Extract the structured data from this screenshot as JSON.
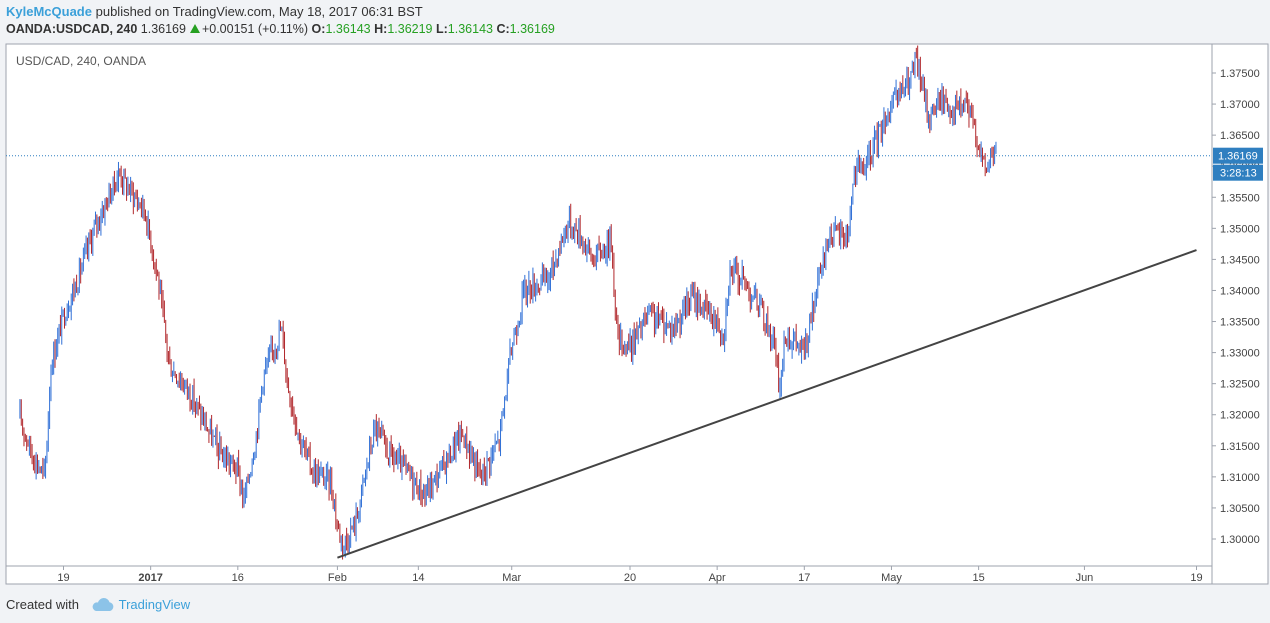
{
  "header": {
    "author": "KyleMcQuade",
    "published_text": "published on TradingView.com, May 18, 2017 06:31 BST",
    "symbol": "OANDA:USDCAD, 240",
    "last": "1.36169",
    "change": "+0.00151 (+0.11%)",
    "o_label": "O:",
    "o_value": "1.36143",
    "h_label": "H:",
    "h_value": "1.36219",
    "l_label": "L:",
    "l_value": "1.36143",
    "c_label": "C:",
    "c_value": "1.36169"
  },
  "footer": {
    "created_with": "Created with",
    "brand": "TradingView"
  },
  "colors": {
    "up_candle": "#2f6fd6",
    "down_candle": "#b0262a",
    "trendline": "#444444",
    "price_line": "#2f7fc0",
    "price_label_bg": "#2f7fc0",
    "accent": "#3ba0d9"
  },
  "chart_data": {
    "type": "candlestick",
    "title": "USD/CAD, 240, OANDA",
    "ylim": [
      1.2965,
      1.3795
    ],
    "y_ticks": [
      "1.37500",
      "1.37000",
      "1.36500",
      "1.36000",
      "1.35500",
      "1.35000",
      "1.34500",
      "1.34000",
      "1.33500",
      "1.33000",
      "1.32500",
      "1.32000",
      "1.31500",
      "1.31000",
      "1.30500",
      "1.30000"
    ],
    "x_ticks": [
      "19",
      "2017",
      "16",
      "Feb",
      "14",
      "Mar",
      "20",
      "Apr",
      "17",
      "May",
      "15",
      "Jun",
      "19"
    ],
    "x_tick_dates": [
      "2016-12-19",
      "2017-01-02",
      "2017-01-16",
      "2017-02-01",
      "2017-02-14",
      "2017-03-01",
      "2017-03-20",
      "2017-04-03",
      "2017-04-17",
      "2017-05-01",
      "2017-05-15",
      "2017-06-01",
      "2017-06-19"
    ],
    "current_price": "1.36169",
    "countdown": "3:28:13",
    "price_path": [
      {
        "date": "2016-12-12",
        "price": 1.3195
      },
      {
        "date": "2016-12-14",
        "price": 1.3135
      },
      {
        "date": "2016-12-16",
        "price": 1.31
      },
      {
        "date": "2016-12-17",
        "price": 1.328
      },
      {
        "date": "2016-12-19",
        "price": 1.336
      },
      {
        "date": "2016-12-21",
        "price": 1.341
      },
      {
        "date": "2016-12-24",
        "price": 1.35
      },
      {
        "date": "2016-12-28",
        "price": 1.359
      },
      {
        "date": "2016-12-29",
        "price": 1.357
      },
      {
        "date": "2017-01-01",
        "price": 1.353
      },
      {
        "date": "2017-01-03",
        "price": 1.343
      },
      {
        "date": "2017-01-05",
        "price": 1.328
      },
      {
        "date": "2017-01-08",
        "price": 1.324
      },
      {
        "date": "2017-01-11",
        "price": 1.318
      },
      {
        "date": "2017-01-13",
        "price": 1.314
      },
      {
        "date": "2017-01-16",
        "price": 1.311
      },
      {
        "date": "2017-01-17",
        "price": 1.306
      },
      {
        "date": "2017-01-19",
        "price": 1.317
      },
      {
        "date": "2017-01-20",
        "price": 1.326
      },
      {
        "date": "2017-01-23",
        "price": 1.334
      },
      {
        "date": "2017-01-24",
        "price": 1.325
      },
      {
        "date": "2017-01-26",
        "price": 1.316
      },
      {
        "date": "2017-01-28",
        "price": 1.311
      },
      {
        "date": "2017-01-31",
        "price": 1.309
      },
      {
        "date": "2017-02-01",
        "price": 1.302
      },
      {
        "date": "2017-02-02",
        "price": 1.299
      },
      {
        "date": "2017-02-04",
        "price": 1.303
      },
      {
        "date": "2017-02-07",
        "price": 1.318
      },
      {
        "date": "2017-02-09",
        "price": 1.314
      },
      {
        "date": "2017-02-12",
        "price": 1.311
      },
      {
        "date": "2017-02-15",
        "price": 1.307
      },
      {
        "date": "2017-02-17",
        "price": 1.31
      },
      {
        "date": "2017-02-21",
        "price": 1.317
      },
      {
        "date": "2017-02-24",
        "price": 1.31
      },
      {
        "date": "2017-02-27",
        "price": 1.316
      },
      {
        "date": "2017-03-01",
        "price": 1.331
      },
      {
        "date": "2017-03-03",
        "price": 1.34
      },
      {
        "date": "2017-03-07",
        "price": 1.342
      },
      {
        "date": "2017-03-10",
        "price": 1.351
      },
      {
        "date": "2017-03-12",
        "price": 1.349
      },
      {
        "date": "2017-03-14",
        "price": 1.345
      },
      {
        "date": "2017-03-17",
        "price": 1.348
      },
      {
        "date": "2017-03-18",
        "price": 1.332
      },
      {
        "date": "2017-03-20",
        "price": 1.331
      },
      {
        "date": "2017-03-23",
        "price": 1.336
      },
      {
        "date": "2017-03-27",
        "price": 1.334
      },
      {
        "date": "2017-03-30",
        "price": 1.339
      },
      {
        "date": "2017-04-03",
        "price": 1.335
      },
      {
        "date": "2017-04-04",
        "price": 1.333
      },
      {
        "date": "2017-04-05",
        "price": 1.343
      },
      {
        "date": "2017-04-07",
        "price": 1.342
      },
      {
        "date": "2017-04-10",
        "price": 1.337
      },
      {
        "date": "2017-04-12",
        "price": 1.332
      },
      {
        "date": "2017-04-13",
        "price": 1.324
      },
      {
        "date": "2017-04-14",
        "price": 1.333
      },
      {
        "date": "2017-04-17",
        "price": 1.33
      },
      {
        "date": "2017-04-19",
        "price": 1.34
      },
      {
        "date": "2017-04-21",
        "price": 1.349
      },
      {
        "date": "2017-04-24",
        "price": 1.349
      },
      {
        "date": "2017-04-25",
        "price": 1.359
      },
      {
        "date": "2017-04-27",
        "price": 1.36
      },
      {
        "date": "2017-04-30",
        "price": 1.368
      },
      {
        "date": "2017-05-02",
        "price": 1.371
      },
      {
        "date": "2017-05-04",
        "price": 1.374
      },
      {
        "date": "2017-05-05",
        "price": 1.377
      },
      {
        "date": "2017-05-07",
        "price": 1.368
      },
      {
        "date": "2017-05-09",
        "price": 1.371
      },
      {
        "date": "2017-05-11",
        "price": 1.369
      },
      {
        "date": "2017-05-13",
        "price": 1.37
      },
      {
        "date": "2017-05-15",
        "price": 1.364
      },
      {
        "date": "2017-05-16",
        "price": 1.359
      },
      {
        "date": "2017-05-17",
        "price": 1.362
      },
      {
        "date": "2017-05-18",
        "price": 1.36169
      }
    ],
    "trendline": {
      "start": {
        "date": "2017-02-01",
        "price": 1.297
      },
      "end": {
        "date": "2017-06-19",
        "price": 1.3465
      }
    },
    "grid": false
  }
}
